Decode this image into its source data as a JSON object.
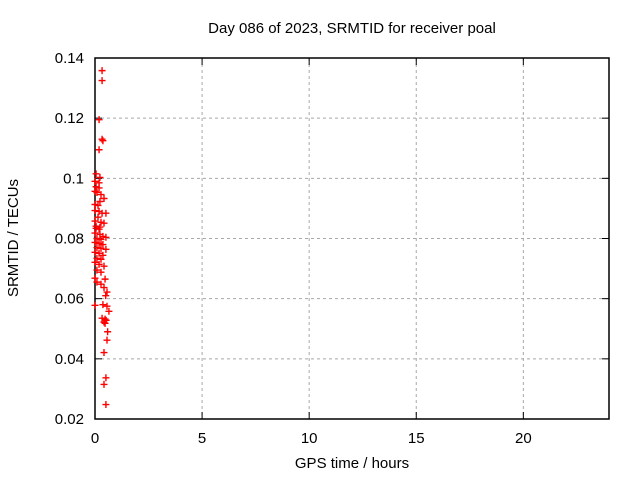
{
  "window": {
    "background": "#ffffff"
  },
  "chart_data": {
    "type": "scatter",
    "title": "Day 086 of 2023, SRMTID for receiver poal",
    "xlabel": "GPS time / hours",
    "ylabel": "SRMTID / TECUs",
    "xlim": [
      0,
      24
    ],
    "ylim": [
      0.02,
      0.14
    ],
    "xticks": [
      0,
      5,
      10,
      15,
      20
    ],
    "xtick_labels": [
      "0",
      "5",
      "10",
      "15",
      "20"
    ],
    "yticks": [
      0.02,
      0.04,
      0.06,
      0.08,
      0.1,
      0.12,
      0.14
    ],
    "ytick_labels": [
      "0.02",
      "0.04",
      "0.06",
      "0.08",
      "0.1",
      "0.12",
      "0.14"
    ],
    "grid": true,
    "legend": "none",
    "marker": {
      "shape": "plus",
      "color": "#ff0000",
      "size": 7
    },
    "series": [
      {
        "name": "SRMTID",
        "points": [
          [
            0.33,
            0.1358
          ],
          [
            0.33,
            0.1325
          ],
          [
            0.19,
            0.1195
          ],
          [
            0.33,
            0.113
          ],
          [
            0.37,
            0.1125
          ],
          [
            0.19,
            0.1095
          ],
          [
            0.05,
            0.1015
          ],
          [
            0.23,
            0.1003
          ],
          [
            0.0,
            0.099
          ],
          [
            0.19,
            0.0985
          ],
          [
            0.05,
            0.0972
          ],
          [
            0.19,
            0.0968
          ],
          [
            0.0,
            0.0957
          ],
          [
            0.09,
            0.0953
          ],
          [
            0.28,
            0.0946
          ],
          [
            0.42,
            0.0933
          ],
          [
            0.23,
            0.0923
          ],
          [
            0.0,
            0.0913
          ],
          [
            0.14,
            0.091
          ],
          [
            0.0,
            0.0893
          ],
          [
            0.19,
            0.089
          ],
          [
            0.33,
            0.0884
          ],
          [
            0.51,
            0.0884
          ],
          [
            0.14,
            0.0871
          ],
          [
            0.0,
            0.0858
          ],
          [
            0.28,
            0.0854
          ],
          [
            0.42,
            0.0851
          ],
          [
            0.05,
            0.0841
          ],
          [
            0.23,
            0.0838
          ],
          [
            0.05,
            0.0834
          ],
          [
            0.19,
            0.0831
          ],
          [
            0.0,
            0.0818
          ],
          [
            0.23,
            0.0814
          ],
          [
            0.37,
            0.0807
          ],
          [
            0.51,
            0.0804
          ],
          [
            0.09,
            0.08
          ],
          [
            0.28,
            0.0797
          ],
          [
            0.0,
            0.0787
          ],
          [
            0.19,
            0.0784
          ],
          [
            0.37,
            0.078
          ],
          [
            0.09,
            0.077
          ],
          [
            0.28,
            0.0767
          ],
          [
            0.51,
            0.0764
          ],
          [
            0.0,
            0.0754
          ],
          [
            0.19,
            0.0751
          ],
          [
            0.37,
            0.0744
          ],
          [
            0.09,
            0.0734
          ],
          [
            0.28,
            0.0731
          ],
          [
            0.0,
            0.0721
          ],
          [
            0.19,
            0.0714
          ],
          [
            0.42,
            0.0708
          ],
          [
            0.09,
            0.0695
          ],
          [
            0.28,
            0.0688
          ],
          [
            0.0,
            0.0668
          ],
          [
            0.47,
            0.0665
          ],
          [
            0.09,
            0.0655
          ],
          [
            0.28,
            0.0648
          ],
          [
            0.42,
            0.0637
          ],
          [
            0.56,
            0.0622
          ],
          [
            0.5,
            0.061
          ],
          [
            0.0,
            0.0578
          ],
          [
            0.37,
            0.058
          ],
          [
            0.56,
            0.0575
          ],
          [
            0.65,
            0.0558
          ],
          [
            0.33,
            0.0535
          ],
          [
            0.47,
            0.0532
          ],
          [
            0.52,
            0.0528
          ],
          [
            0.42,
            0.0522
          ],
          [
            0.47,
            0.0518
          ],
          [
            0.59,
            0.049
          ],
          [
            0.56,
            0.0462
          ],
          [
            0.42,
            0.0421
          ],
          [
            0.51,
            0.0337
          ],
          [
            0.42,
            0.0315
          ],
          [
            0.51,
            0.0248
          ]
        ]
      }
    ]
  },
  "colors": {
    "marker": "#ff0000",
    "grid": "#a8a8a8",
    "axis": "#000000",
    "background": "#ffffff",
    "text": "#000000"
  }
}
